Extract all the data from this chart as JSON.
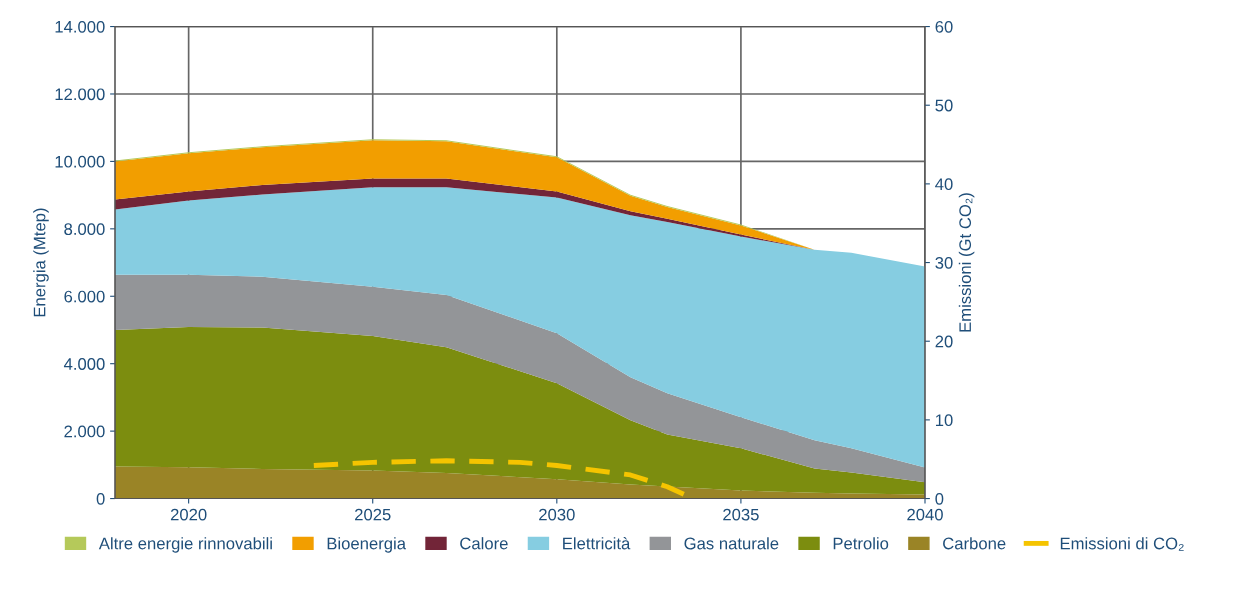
{
  "chart_data": {
    "type": "area",
    "stacked": true,
    "ylabel": "Energia (Mtep)",
    "y2label": "Emissioni (Gt CO₂)",
    "x": [
      2018,
      2020,
      2022,
      2025,
      2027,
      2030,
      2032,
      2033,
      2035,
      2037,
      2038,
      2040
    ],
    "xlim": [
      2018,
      2040
    ],
    "xticks": [
      2020,
      2025,
      2030,
      2035,
      2040
    ],
    "ylim": [
      0,
      14000
    ],
    "yticks": [
      0,
      {
        "value": 2000,
        "label": "2.000"
      },
      {
        "value": 4000,
        "label": "4.000"
      },
      {
        "value": 6000,
        "label": "6.000"
      },
      {
        "value": 8000,
        "label": "8.000"
      },
      {
        "value": 10000,
        "label": "10.000"
      },
      {
        "value": 12000,
        "label": "12.000"
      },
      {
        "value": 14000,
        "label": "14.000"
      }
    ],
    "y2lim": [
      0,
      60
    ],
    "y2ticks": [
      0,
      10,
      20,
      30,
      40,
      50,
      60
    ],
    "grid": true,
    "legend": "bottom",
    "series": [
      {
        "name": "Carbone",
        "color": "#9a8426",
        "values": [
          950,
          930,
          880,
          830,
          760,
          570,
          420,
          360,
          240,
          170,
          150,
          120
        ]
      },
      {
        "name": "Petrolio",
        "color": "#7c8d0f",
        "values": [
          4050,
          4160,
          4190,
          3990,
          3730,
          2850,
          1900,
          1540,
          1250,
          720,
          620,
          360
        ]
      },
      {
        "name": "Gas naturale",
        "color": "#939598",
        "values": [
          1640,
          1550,
          1510,
          1460,
          1550,
          1480,
          1280,
          1220,
          920,
          840,
          720,
          440
        ]
      },
      {
        "name": "Elettricità",
        "color": "#86cde1",
        "values": [
          1930,
          2200,
          2440,
          2950,
          3190,
          4030,
          4800,
          5080,
          5360,
          5650,
          5800,
          5960
        ]
      },
      {
        "name": "Calore",
        "color": "#722538",
        "values": [
          300,
          270,
          280,
          260,
          260,
          180,
          120,
          100,
          60,
          0,
          0,
          0
        ]
      },
      {
        "name": "Bioenergia",
        "color": "#f29e00",
        "values": [
          1130,
          1130,
          1120,
          1140,
          1110,
          1010,
          460,
          350,
          270,
          0,
          0,
          0
        ]
      },
      {
        "name": "Altre energie rinnovabili",
        "color": "#b5c95a",
        "values": [
          30,
          30,
          30,
          30,
          30,
          30,
          30,
          30,
          30,
          0,
          0,
          0
        ]
      },
      {
        "name": "Emissioni di CO₂",
        "type": "line",
        "axis": "y2",
        "color": "#f5c400",
        "line_style": "dashed",
        "x": [
          2023.4,
          2025,
          2027,
          2029,
          2030,
          2032,
          2033,
          2033.7
        ],
        "values": [
          4.2,
          4.6,
          4.8,
          4.6,
          4.2,
          3.0,
          1.5,
          0
        ]
      }
    ]
  }
}
